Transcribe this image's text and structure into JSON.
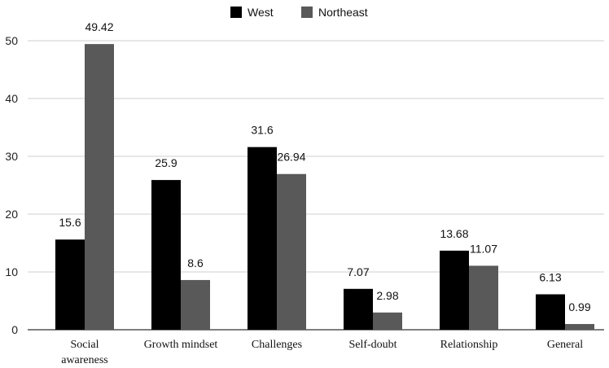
{
  "chart_data": {
    "type": "bar",
    "categories": [
      [
        "Social",
        "awareness"
      ],
      [
        "Growth mindset"
      ],
      [
        "Challenges"
      ],
      [
        "Self-doubt"
      ],
      [
        "Relationship"
      ],
      [
        "General"
      ]
    ],
    "series": [
      {
        "name": "West",
        "color": "#000000",
        "values": [
          15.6,
          25.9,
          31.6,
          7.07,
          13.68,
          6.13
        ],
        "labels": [
          "15.6",
          "25.9",
          "31.6",
          "7.07",
          "13.68",
          "6.13"
        ]
      },
      {
        "name": "Northeast",
        "color": "#595959",
        "values": [
          49.42,
          8.6,
          26.94,
          2.98,
          11.07,
          0.99
        ],
        "labels": [
          "49.42",
          "8.6",
          "26.94",
          "2.98",
          "11.07",
          "0.99"
        ]
      }
    ],
    "ylim": [
      0,
      50
    ],
    "yticks": [
      "0",
      "10",
      "20",
      "30",
      "40",
      "50"
    ],
    "grid": true,
    "legend": "top-center"
  }
}
